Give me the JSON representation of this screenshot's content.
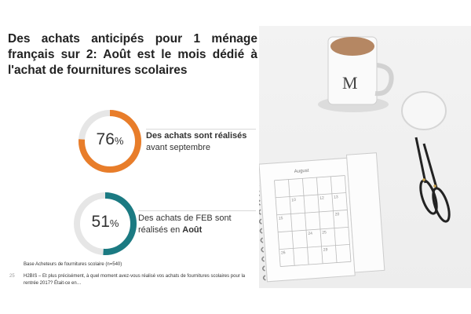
{
  "title": "Des achats anticipés pour 1 ménage français sur 2: Août est le mois dédié à l'achat de fournitures scolaires",
  "stats": [
    {
      "value": "76",
      "unit": "%",
      "fraction": 0.76,
      "color": "#e87d2a",
      "label_bold": "Des achats sont réalisés",
      "label_rest": "avant septembre"
    },
    {
      "value": "51",
      "unit": "%",
      "fraction": 0.51,
      "color": "#1b7a82",
      "label_line1": "Des achats de FEB sont",
      "label_line2_plain": "réalisés en ",
      "label_line2_bold": "Août"
    }
  ],
  "footer": {
    "base": "Base Acheteurs de fournitures scolaire (n=540)",
    "page_number": "25",
    "question": "H2BIS – Et plus précisément, à quel moment avez-vous réalisé vos achats de fournitures scolaires pour la rentrée 2017? Était-ce en…"
  },
  "photo": {
    "calendar_month": "August",
    "calendar_numbers": [
      "10",
      "12",
      "13",
      "15",
      "20",
      "24",
      "25",
      "26",
      "29"
    ]
  }
}
